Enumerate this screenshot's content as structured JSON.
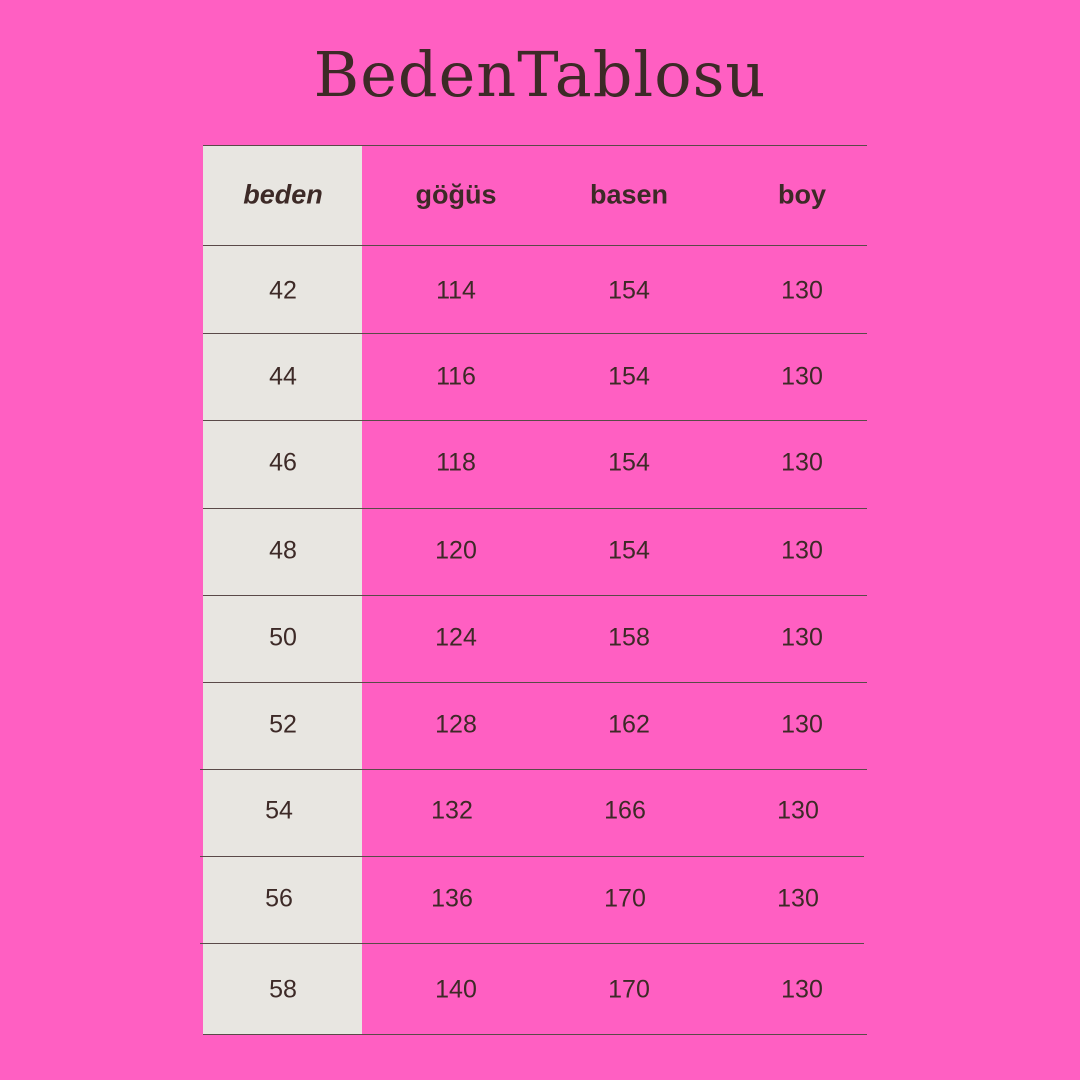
{
  "title": "BedenTablosu",
  "colors": {
    "background": "#ff5fc2",
    "size_column": "#e8e6e1",
    "text": "#3d2a27"
  },
  "table": {
    "headers": [
      "beden",
      "göğüs",
      "basen",
      "boy"
    ],
    "rows": [
      [
        "42",
        "114",
        "154",
        "130"
      ],
      [
        "44",
        "116",
        "154",
        "130"
      ],
      [
        "46",
        "118",
        "154",
        "130"
      ],
      [
        "48",
        "120",
        "154",
        "130"
      ],
      [
        "50",
        "124",
        "158",
        "130"
      ],
      [
        "52",
        "128",
        "162",
        "130"
      ],
      [
        "54",
        "132",
        "166",
        "130"
      ],
      [
        "56",
        "136",
        "170",
        "130"
      ],
      [
        "58",
        "140",
        "170",
        "130"
      ]
    ]
  }
}
